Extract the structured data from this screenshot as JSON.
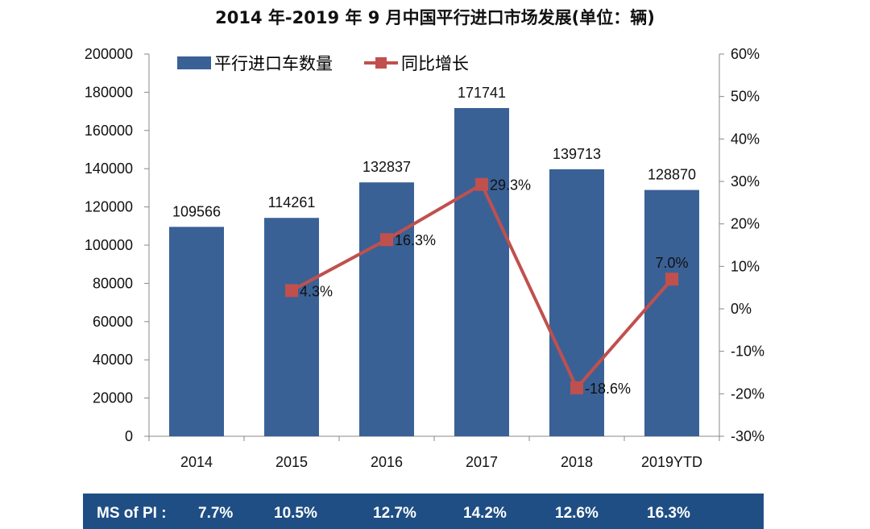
{
  "chart_data": {
    "type": "bar",
    "title": "2014 年-2019 年 9 月中国平行进口市场发展(单位：辆)",
    "categories": [
      "2014",
      "2015",
      "2016",
      "2017",
      "2018",
      "2019YTD"
    ],
    "series": [
      {
        "name": "平行进口车数量",
        "type": "bar",
        "axis": "left",
        "color": "#3a6196",
        "values": [
          109566,
          114261,
          132837,
          171741,
          139713,
          128870
        ],
        "labels": [
          "109566",
          "114261",
          "132837",
          "171741",
          "139713",
          "128870"
        ]
      },
      {
        "name": "同比增长",
        "type": "line",
        "axis": "right",
        "color": "#c0504d",
        "values": [
          null,
          4.3,
          16.3,
          29.3,
          -18.6,
          7.0
        ],
        "labels": [
          "",
          "4.3%",
          "16.3%",
          "29.3%",
          "-18.6%",
          "7.0%"
        ]
      }
    ],
    "y_left": {
      "range": [
        0,
        200000
      ],
      "ticks": [
        "0",
        "20000",
        "40000",
        "60000",
        "80000",
        "100000",
        "120000",
        "140000",
        "160000",
        "180000",
        "200000"
      ]
    },
    "y_right": {
      "range": [
        -30,
        60
      ],
      "ticks": [
        "-30%",
        "-20%",
        "-10%",
        "0%",
        "10%",
        "20%",
        "30%",
        "40%",
        "50%",
        "60%"
      ]
    },
    "legend": "top-left",
    "grid": false
  },
  "footer": {
    "label": "MS of PI :",
    "values": [
      "7.7%",
      "10.5%",
      "12.7%",
      "14.2%",
      "12.6%",
      "16.3%"
    ]
  }
}
